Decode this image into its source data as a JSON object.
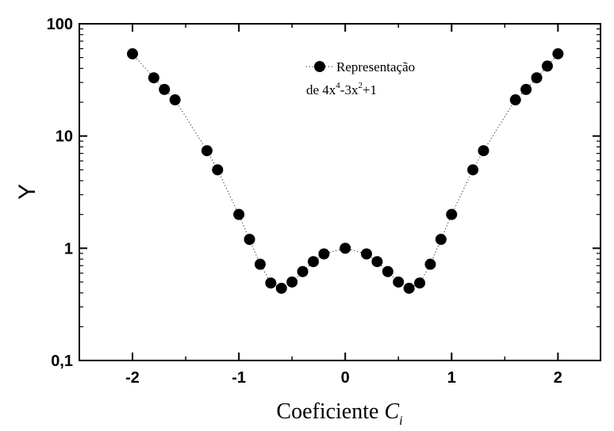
{
  "chart_data": {
    "type": "scatter",
    "title": "",
    "xlabel": "Coeficiente ",
    "xlabel_var": "C",
    "xlabel_sub": "i",
    "ylabel": "Y",
    "yscale": "log",
    "xlim": [
      -2.5,
      2.4
    ],
    "ylim": [
      0.1,
      100
    ],
    "x_ticks": [
      -2,
      -1,
      0,
      1,
      2
    ],
    "x_tick_labels": [
      "-2",
      "-1",
      "0",
      "1",
      "2"
    ],
    "y_ticks": [
      0.1,
      1,
      10,
      100
    ],
    "y_tick_labels": [
      "0,1",
      "1",
      "10",
      "100"
    ],
    "grid": false,
    "legend_position": "top-center",
    "legend_line1": "Representação",
    "legend_line2_parts": [
      "de 4x",
      "4",
      "-3x",
      "2",
      "+1"
    ],
    "series": [
      {
        "marker": "filled-circle",
        "line_style": "dotted",
        "color": "#000000",
        "points": [
          {
            "x": -2.0,
            "y": 54
          },
          {
            "x": -1.8,
            "y": 33
          },
          {
            "x": -1.7,
            "y": 26
          },
          {
            "x": -1.6,
            "y": 21
          },
          {
            "x": -1.3,
            "y": 7.4
          },
          {
            "x": -1.2,
            "y": 5
          },
          {
            "x": -1.0,
            "y": 2.0
          },
          {
            "x": -0.9,
            "y": 1.2
          },
          {
            "x": -0.8,
            "y": 0.72
          },
          {
            "x": -0.7,
            "y": 0.49
          },
          {
            "x": -0.6,
            "y": 0.44
          },
          {
            "x": -0.5,
            "y": 0.5
          },
          {
            "x": -0.4,
            "y": 0.62
          },
          {
            "x": -0.3,
            "y": 0.76
          },
          {
            "x": -0.2,
            "y": 0.89
          },
          {
            "x": 0.0,
            "y": 1.0
          },
          {
            "x": 0.2,
            "y": 0.89
          },
          {
            "x": 0.3,
            "y": 0.76
          },
          {
            "x": 0.4,
            "y": 0.62
          },
          {
            "x": 0.5,
            "y": 0.5
          },
          {
            "x": 0.6,
            "y": 0.44
          },
          {
            "x": 0.7,
            "y": 0.49
          },
          {
            "x": 0.8,
            "y": 0.72
          },
          {
            "x": 0.9,
            "y": 1.2
          },
          {
            "x": 1.0,
            "y": 2.0
          },
          {
            "x": 1.2,
            "y": 5
          },
          {
            "x": 1.3,
            "y": 7.4
          },
          {
            "x": 1.6,
            "y": 21
          },
          {
            "x": 1.7,
            "y": 26
          },
          {
            "x": 1.8,
            "y": 33
          },
          {
            "x": 1.9,
            "y": 42
          },
          {
            "x": 2.0,
            "y": 54
          }
        ]
      }
    ]
  }
}
